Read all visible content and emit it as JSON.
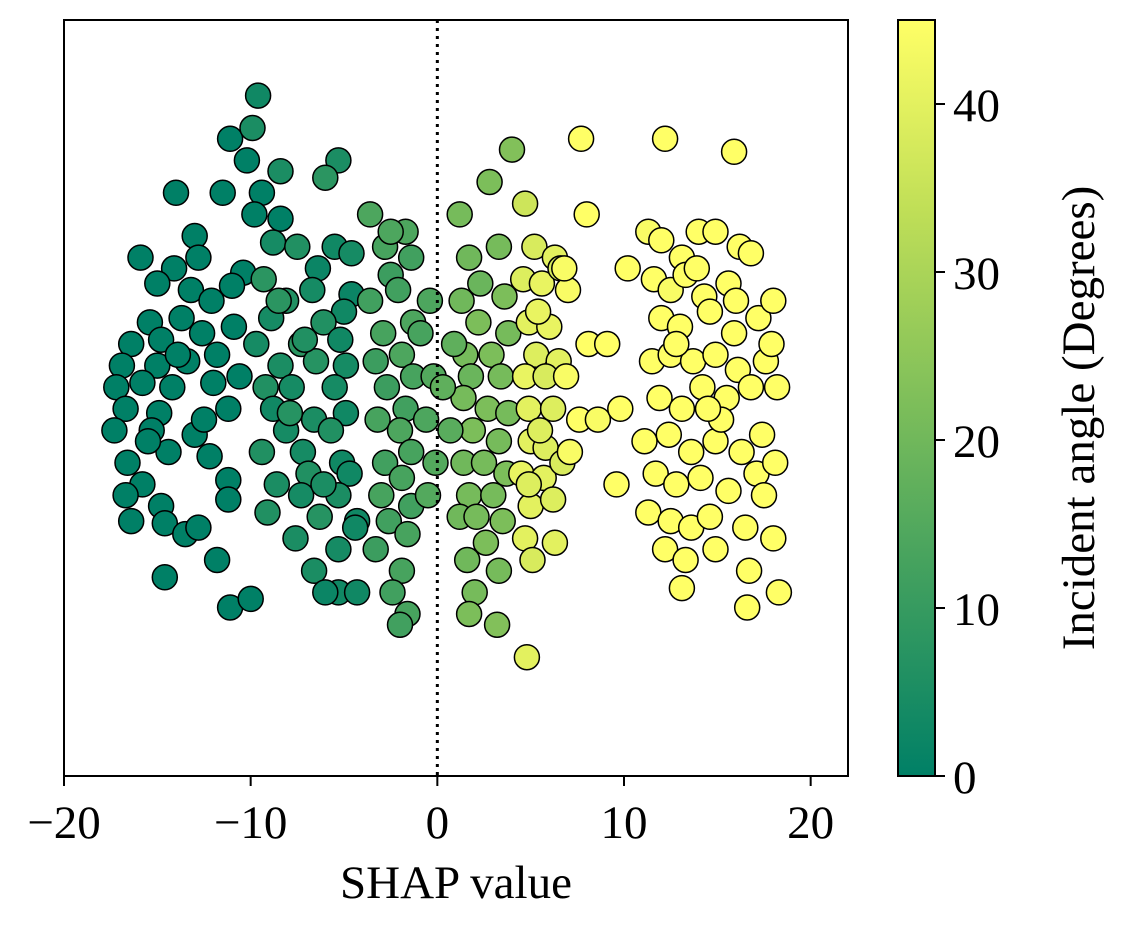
{
  "chart_data": {
    "type": "scatter",
    "title": "",
    "xlabel": "SHAP value",
    "ylabel": "",
    "xlim": [
      -20,
      22
    ],
    "ylim": [
      -1.9,
      1.6
    ],
    "grid": false,
    "y_axis_visible": false,
    "x_ticks": [
      -20,
      -10,
      0,
      10,
      20
    ],
    "x_tick_labels": [
      "−20",
      "−10",
      "0",
      "10",
      "20"
    ],
    "reference_line": {
      "x": 0,
      "style": "dotted",
      "color": "#000000"
    },
    "marker_edge_color": "#000000",
    "colorbar": {
      "label": "Incident angle (Degrees)",
      "range": [
        0,
        45
      ],
      "ticks": [
        0,
        10,
        20,
        30,
        40
      ],
      "tick_labels": [
        "0",
        "10",
        "20",
        "30",
        "40"
      ],
      "colors": [
        "#008066",
        "#3d9e5f",
        "#7fbf5a",
        "#c0df57",
        "#ffff66"
      ]
    },
    "points": [
      [
        -11.1,
        1.05,
        0
      ],
      [
        -10.2,
        0.95,
        0
      ],
      [
        -14.0,
        0.8,
        0
      ],
      [
        -11.5,
        0.8,
        0
      ],
      [
        -9.4,
        0.8,
        0
      ],
      [
        -9.8,
        0.7,
        0
      ],
      [
        -8.4,
        0.68,
        0
      ],
      [
        -13.0,
        0.6,
        0
      ],
      [
        -15.9,
        0.5,
        0
      ],
      [
        -14.1,
        0.45,
        0
      ],
      [
        -12.8,
        0.5,
        0
      ],
      [
        -10.4,
        0.43,
        0
      ],
      [
        -15.0,
        0.38,
        0
      ],
      [
        -13.2,
        0.35,
        0
      ],
      [
        -11.0,
        0.37,
        0
      ],
      [
        -12.1,
        0.3,
        0
      ],
      [
        -15.4,
        0.2,
        0
      ],
      [
        -13.7,
        0.22,
        0
      ],
      [
        -16.4,
        0.1,
        0
      ],
      [
        -14.8,
        0.12,
        0
      ],
      [
        -12.6,
        0.15,
        0
      ],
      [
        -10.9,
        0.18,
        0
      ],
      [
        -16.9,
        0.0,
        0
      ],
      [
        -15.0,
        0.0,
        0
      ],
      [
        -13.4,
        0.02,
        0
      ],
      [
        -11.8,
        0.05,
        0
      ],
      [
        -17.2,
        -0.1,
        0
      ],
      [
        -15.8,
        -0.08,
        0
      ],
      [
        -14.2,
        -0.1,
        0
      ],
      [
        -12.0,
        -0.08,
        0
      ],
      [
        -10.6,
        -0.05,
        0
      ],
      [
        -16.7,
        -0.2,
        0
      ],
      [
        -14.9,
        -0.22,
        0
      ],
      [
        -11.2,
        -0.2,
        0
      ],
      [
        -17.3,
        -0.3,
        0
      ],
      [
        -15.3,
        -0.3,
        0
      ],
      [
        -13.0,
        -0.32,
        0
      ],
      [
        -16.6,
        -0.45,
        0
      ],
      [
        -14.4,
        -0.4,
        0
      ],
      [
        -12.2,
        -0.42,
        0
      ],
      [
        -15.8,
        -0.55,
        0
      ],
      [
        -11.2,
        -0.53,
        0
      ],
      [
        -16.7,
        -0.6,
        0
      ],
      [
        -14.8,
        -0.65,
        0
      ],
      [
        -11.2,
        -0.62,
        0
      ],
      [
        -16.4,
        -0.72,
        0
      ],
      [
        -14.6,
        -0.73,
        0
      ],
      [
        -13.5,
        -0.78,
        0
      ],
      [
        -11.8,
        -0.9,
        0
      ],
      [
        -14.6,
        -0.98,
        0
      ],
      [
        -11.1,
        -1.12,
        0
      ],
      [
        -10.0,
        -1.08,
        0
      ],
      [
        -12.8,
        -0.75,
        0
      ],
      [
        -13.9,
        0.05,
        0
      ],
      [
        -15.5,
        -0.35,
        0
      ],
      [
        -12.5,
        -0.25,
        0
      ],
      [
        -9.6,
        1.25,
        3
      ],
      [
        -9.9,
        1.1,
        5
      ],
      [
        -8.4,
        0.9,
        5
      ],
      [
        -5.3,
        0.95,
        5
      ],
      [
        -6.0,
        0.87,
        8
      ],
      [
        -8.8,
        0.57,
        4
      ],
      [
        -7.5,
        0.55,
        6
      ],
      [
        -5.5,
        0.55,
        3
      ],
      [
        -6.4,
        0.45,
        2
      ],
      [
        -4.6,
        0.52,
        4
      ],
      [
        -9.3,
        0.4,
        8
      ],
      [
        -6.7,
        0.35,
        4
      ],
      [
        -4.6,
        0.33,
        2
      ],
      [
        -8.1,
        0.3,
        6
      ],
      [
        -5.0,
        0.25,
        3
      ],
      [
        -8.9,
        0.22,
        4
      ],
      [
        -6.1,
        0.2,
        6
      ],
      [
        -9.7,
        0.1,
        4
      ],
      [
        -7.3,
        0.1,
        8
      ],
      [
        -5.2,
        0.12,
        3
      ],
      [
        -8.4,
        0.0,
        5
      ],
      [
        -6.5,
        0.02,
        7
      ],
      [
        -4.9,
        0.0,
        4
      ],
      [
        -9.2,
        -0.1,
        6
      ],
      [
        -7.8,
        -0.1,
        4
      ],
      [
        -5.5,
        -0.1,
        4
      ],
      [
        -8.8,
        -0.2,
        3
      ],
      [
        -6.6,
        -0.25,
        5
      ],
      [
        -4.9,
        -0.22,
        3
      ],
      [
        -8.1,
        -0.3,
        4
      ],
      [
        -5.7,
        -0.3,
        6
      ],
      [
        -9.4,
        -0.4,
        6
      ],
      [
        -7.2,
        -0.4,
        4
      ],
      [
        -5.1,
        -0.45,
        3
      ],
      [
        -8.6,
        -0.55,
        5
      ],
      [
        -6.9,
        -0.5,
        6
      ],
      [
        -4.7,
        -0.5,
        3
      ],
      [
        -7.3,
        -0.6,
        4
      ],
      [
        -5.3,
        -0.6,
        5
      ],
      [
        -9.1,
        -0.68,
        6
      ],
      [
        -6.3,
        -0.7,
        7
      ],
      [
        -4.3,
        -0.72,
        3
      ],
      [
        -7.6,
        -0.8,
        5
      ],
      [
        -5.3,
        -0.85,
        4
      ],
      [
        -6.6,
        -0.95,
        5
      ],
      [
        -5.3,
        -1.05,
        3
      ],
      [
        -6.0,
        -1.05,
        2
      ],
      [
        -4.3,
        -1.05,
        3
      ],
      [
        -4.4,
        -0.75,
        3
      ],
      [
        -7.9,
        -0.22,
        7
      ],
      [
        -6.1,
        -0.55,
        5
      ],
      [
        -8.5,
        0.3,
        8
      ],
      [
        -7.1,
        0.12,
        6
      ],
      [
        -3.6,
        0.7,
        14
      ],
      [
        -2.8,
        0.55,
        13
      ],
      [
        -1.7,
        0.62,
        14
      ],
      [
        -2.5,
        0.42,
        11
      ],
      [
        -1.4,
        0.5,
        12
      ],
      [
        -3.6,
        0.3,
        12
      ],
      [
        -2.1,
        0.35,
        12
      ],
      [
        -1.3,
        0.2,
        14
      ],
      [
        -2.9,
        0.15,
        13
      ],
      [
        -1.9,
        0.05,
        14
      ],
      [
        -3.3,
        0.02,
        11
      ],
      [
        -1.3,
        -0.05,
        13
      ],
      [
        -2.7,
        -0.1,
        11
      ],
      [
        -1.7,
        -0.2,
        12
      ],
      [
        -3.2,
        -0.25,
        13
      ],
      [
        -2.0,
        -0.3,
        14
      ],
      [
        -1.4,
        -0.4,
        13
      ],
      [
        -2.8,
        -0.45,
        12
      ],
      [
        -1.9,
        -0.52,
        13
      ],
      [
        -3.0,
        -0.6,
        13
      ],
      [
        -1.4,
        -0.65,
        12
      ],
      [
        -2.6,
        -0.72,
        12
      ],
      [
        -1.6,
        -0.78,
        13
      ],
      [
        -3.3,
        -0.85,
        11
      ],
      [
        -1.9,
        -0.95,
        13
      ],
      [
        -2.4,
        -1.05,
        12
      ],
      [
        -1.6,
        -1.15,
        13
      ],
      [
        -2.0,
        -1.2,
        12
      ],
      [
        -0.4,
        0.3,
        14
      ],
      [
        -0.2,
        -0.05,
        15
      ],
      [
        -0.6,
        -0.25,
        14
      ],
      [
        -0.1,
        -0.45,
        15
      ],
      [
        -0.5,
        -0.6,
        15
      ],
      [
        -2.5,
        0.62,
        14
      ],
      [
        -0.9,
        0.15,
        13
      ],
      [
        1.2,
        0.7,
        21
      ],
      [
        2.8,
        0.85,
        22
      ],
      [
        4.0,
        1.0,
        23
      ],
      [
        1.7,
        0.5,
        20
      ],
      [
        3.3,
        0.55,
        21
      ],
      [
        2.3,
        0.38,
        19
      ],
      [
        1.3,
        0.3,
        20
      ],
      [
        3.6,
        0.32,
        22
      ],
      [
        2.2,
        0.2,
        22
      ],
      [
        3.8,
        0.15,
        21
      ],
      [
        1.5,
        0.05,
        21
      ],
      [
        2.9,
        0.05,
        22
      ],
      [
        1.8,
        -0.05,
        19
      ],
      [
        3.4,
        -0.05,
        21
      ],
      [
        1.4,
        -0.15,
        21
      ],
      [
        2.7,
        -0.2,
        22
      ],
      [
        3.8,
        -0.22,
        21
      ],
      [
        1.9,
        -0.3,
        22
      ],
      [
        3.3,
        -0.35,
        21
      ],
      [
        1.4,
        -0.45,
        20
      ],
      [
        2.5,
        -0.45,
        21
      ],
      [
        3.7,
        -0.5,
        22
      ],
      [
        1.7,
        -0.6,
        21
      ],
      [
        3.0,
        -0.6,
        21
      ],
      [
        1.2,
        -0.7,
        20
      ],
      [
        2.1,
        -0.7,
        21
      ],
      [
        3.5,
        -0.72,
        22
      ],
      [
        2.6,
        -0.82,
        22
      ],
      [
        1.6,
        -0.9,
        20
      ],
      [
        3.3,
        -0.95,
        21
      ],
      [
        2.0,
        -1.05,
        21
      ],
      [
        1.7,
        -1.15,
        22
      ],
      [
        3.2,
        -1.2,
        23
      ],
      [
        0.7,
        -0.3,
        16
      ],
      [
        0.9,
        0.1,
        17
      ],
      [
        0.3,
        -0.1,
        17
      ],
      [
        4.7,
        0.75,
        36
      ],
      [
        5.2,
        0.55,
        38
      ],
      [
        6.3,
        0.5,
        40
      ],
      [
        4.6,
        0.4,
        39
      ],
      [
        5.6,
        0.38,
        41
      ],
      [
        6.6,
        0.45,
        38
      ],
      [
        4.9,
        0.2,
        40
      ],
      [
        6.0,
        0.18,
        41
      ],
      [
        5.3,
        0.05,
        39
      ],
      [
        6.5,
        0.02,
        40
      ],
      [
        4.7,
        -0.05,
        41
      ],
      [
        5.8,
        -0.05,
        38
      ],
      [
        4.9,
        -0.2,
        40
      ],
      [
        6.2,
        -0.2,
        39
      ],
      [
        5.0,
        -0.35,
        40
      ],
      [
        5.8,
        -0.38,
        39
      ],
      [
        4.5,
        -0.5,
        41
      ],
      [
        5.7,
        -0.52,
        40
      ],
      [
        6.7,
        -0.45,
        38
      ],
      [
        5.0,
        -0.65,
        40
      ],
      [
        6.2,
        -0.62,
        39
      ],
      [
        4.7,
        -0.8,
        40
      ],
      [
        6.3,
        -0.82,
        40
      ],
      [
        5.1,
        -0.9,
        38
      ],
      [
        4.8,
        -1.35,
        40
      ],
      [
        5.5,
        -0.3,
        39
      ],
      [
        4.9,
        -0.55,
        39
      ],
      [
        5.4,
        0.25,
        41
      ],
      [
        7.7,
        1.05,
        45
      ],
      [
        8.0,
        0.7,
        45
      ],
      [
        7.0,
        0.35,
        44
      ],
      [
        8.1,
        0.1,
        45
      ],
      [
        6.9,
        -0.05,
        44
      ],
      [
        7.6,
        -0.25,
        45
      ],
      [
        8.6,
        -0.25,
        44
      ],
      [
        6.8,
        0.45,
        44
      ],
      [
        9.1,
        0.1,
        45
      ],
      [
        9.6,
        -0.55,
        45
      ],
      [
        10.2,
        0.45,
        45
      ],
      [
        9.8,
        -0.2,
        45
      ],
      [
        7.1,
        -0.4,
        44
      ],
      [
        12.2,
        1.05,
        45
      ],
      [
        15.9,
        0.99,
        45
      ],
      [
        11.3,
        0.62,
        44
      ],
      [
        12.0,
        0.58,
        45
      ],
      [
        13.1,
        0.5,
        45
      ],
      [
        14.0,
        0.62,
        45
      ],
      [
        14.9,
        0.62,
        45
      ],
      [
        16.2,
        0.55,
        45
      ],
      [
        16.8,
        0.52,
        45
      ],
      [
        11.6,
        0.4,
        45
      ],
      [
        12.5,
        0.35,
        44
      ],
      [
        13.3,
        0.42,
        45
      ],
      [
        14.3,
        0.32,
        45
      ],
      [
        15.6,
        0.38,
        45
      ],
      [
        12.0,
        0.22,
        45
      ],
      [
        13.0,
        0.18,
        45
      ],
      [
        14.6,
        0.25,
        45
      ],
      [
        15.9,
        0.15,
        45
      ],
      [
        17.2,
        0.22,
        45
      ],
      [
        18.0,
        0.3,
        45
      ],
      [
        11.5,
        0.02,
        45
      ],
      [
        12.5,
        0.05,
        45
      ],
      [
        13.7,
        0.02,
        45
      ],
      [
        14.9,
        0.05,
        45
      ],
      [
        16.1,
        -0.02,
        45
      ],
      [
        17.6,
        0.02,
        45
      ],
      [
        11.9,
        -0.15,
        45
      ],
      [
        13.1,
        -0.2,
        45
      ],
      [
        14.2,
        -0.1,
        45
      ],
      [
        15.5,
        -0.15,
        45
      ],
      [
        16.8,
        -0.1,
        45
      ],
      [
        18.2,
        -0.1,
        45
      ],
      [
        11.1,
        -0.35,
        45
      ],
      [
        12.4,
        -0.32,
        45
      ],
      [
        13.6,
        -0.4,
        45
      ],
      [
        14.9,
        -0.35,
        45
      ],
      [
        16.3,
        -0.4,
        45
      ],
      [
        17.4,
        -0.32,
        45
      ],
      [
        11.7,
        -0.5,
        45
      ],
      [
        12.8,
        -0.55,
        45
      ],
      [
        14.1,
        -0.52,
        45
      ],
      [
        15.6,
        -0.58,
        45
      ],
      [
        17.1,
        -0.5,
        45
      ],
      [
        18.1,
        -0.45,
        45
      ],
      [
        11.3,
        -0.68,
        45
      ],
      [
        12.5,
        -0.72,
        45
      ],
      [
        13.6,
        -0.75,
        45
      ],
      [
        14.6,
        -0.7,
        45
      ],
      [
        16.5,
        -0.75,
        45
      ],
      [
        17.5,
        -0.6,
        45
      ],
      [
        12.2,
        -0.85,
        45
      ],
      [
        13.3,
        -0.9,
        45
      ],
      [
        14.9,
        -0.85,
        45
      ],
      [
        16.7,
        -0.95,
        45
      ],
      [
        18.0,
        -0.8,
        45
      ],
      [
        13.1,
        -1.03,
        45
      ],
      [
        16.6,
        -1.12,
        45
      ],
      [
        18.3,
        -1.05,
        45
      ],
      [
        12.8,
        0.1,
        45
      ],
      [
        15.2,
        -0.25,
        45
      ],
      [
        13.9,
        0.45,
        45
      ],
      [
        17.9,
        0.1,
        45
      ],
      [
        14.5,
        -0.2,
        45
      ],
      [
        16.0,
        0.3,
        45
      ]
    ]
  }
}
